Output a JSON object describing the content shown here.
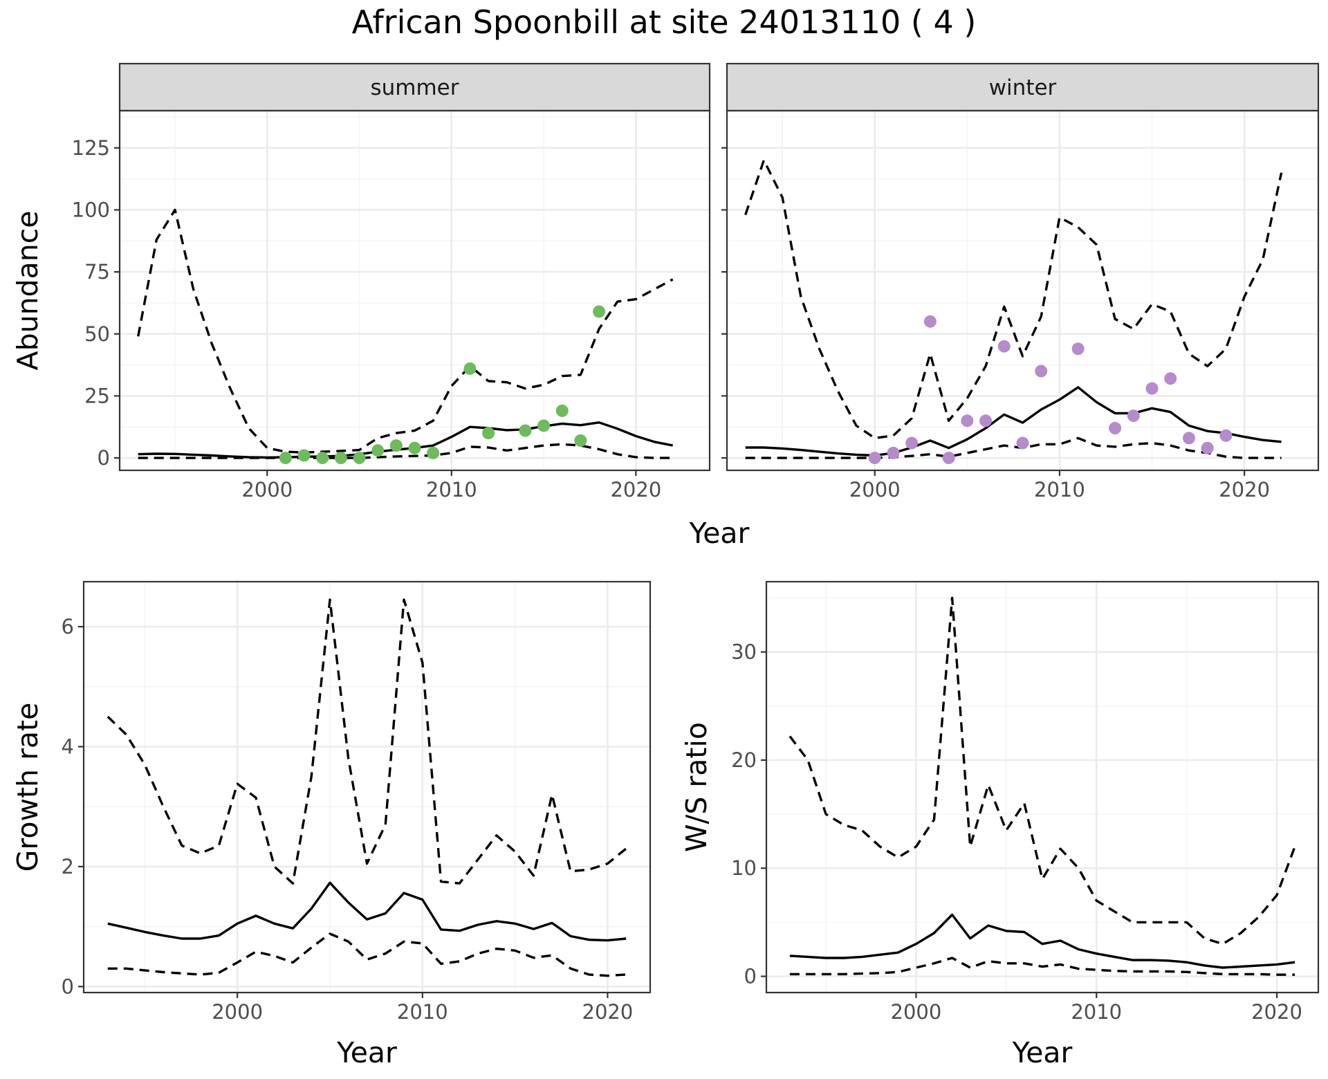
{
  "title": "African Spoonbill at site 24013110 ( 4 )",
  "colors": {
    "summer_points": "#6dbb5b",
    "winter_points": "#b58bcb",
    "lines": "#000000",
    "strip": "#d9d9d9"
  },
  "chart_data": [
    {
      "type": "line",
      "id": "summer",
      "facet_label": "summer",
      "xlabel": "Year",
      "ylabel": "Abundance",
      "xlim": [
        1992,
        2024
      ],
      "ylim": [
        -5,
        140
      ],
      "x_ticks": [
        2000,
        2010,
        2020
      ],
      "y_ticks": [
        0,
        25,
        50,
        75,
        100,
        125
      ],
      "grid": true,
      "series": [
        {
          "role": "estimate",
          "style": "solid",
          "x": [
            1993,
            1994,
            1995,
            1996,
            1997,
            1998,
            1999,
            2000,
            2001,
            2002,
            2003,
            2004,
            2005,
            2006,
            2007,
            2008,
            2009,
            2010,
            2011,
            2012,
            2013,
            2014,
            2015,
            2016,
            2017,
            2018,
            2019,
            2020,
            2021,
            2022
          ],
          "y": [
            1.5,
            1.7,
            1.6,
            1.3,
            1.0,
            0.6,
            0.3,
            0.2,
            0.3,
            0.5,
            0.6,
            0.8,
            1.5,
            2.5,
            3.3,
            4.0,
            5.0,
            8.5,
            12.5,
            12.0,
            11.2,
            11.5,
            12.8,
            13.8,
            13.2,
            14.3,
            11.8,
            8.8,
            6.5,
            5.0
          ]
        },
        {
          "role": "upper",
          "style": "dashed",
          "x": [
            1993,
            1994,
            1995,
            1996,
            1997,
            1998,
            1999,
            2000,
            2001,
            2002,
            2003,
            2004,
            2005,
            2006,
            2007,
            2008,
            2009,
            2010,
            2011,
            2012,
            2013,
            2014,
            2015,
            2016,
            2017,
            2018,
            2019,
            2020,
            2021,
            2022
          ],
          "y": [
            49,
            88,
            100,
            68,
            46,
            28,
            12,
            4,
            2.5,
            2.2,
            2.5,
            2.8,
            3.2,
            8,
            10,
            11,
            15,
            29,
            37,
            31,
            30.5,
            28,
            29.5,
            33,
            33.5,
            52,
            63,
            64,
            68,
            72
          ]
        },
        {
          "role": "lower",
          "style": "dashed",
          "x": [
            1993,
            1994,
            1995,
            1996,
            1997,
            1998,
            1999,
            2000,
            2001,
            2002,
            2003,
            2004,
            2005,
            2006,
            2007,
            2008,
            2009,
            2010,
            2011,
            2012,
            2013,
            2014,
            2015,
            2016,
            2017,
            2018,
            2019,
            2020,
            2021,
            2022
          ],
          "y": [
            0,
            0,
            0,
            0,
            0,
            0,
            0,
            0,
            0,
            0,
            0,
            0,
            0,
            0.3,
            0.6,
            0.8,
            1,
            2,
            4.5,
            4.2,
            3,
            4,
            5,
            5.5,
            5,
            3.5,
            1.5,
            0.3,
            0,
            0
          ]
        },
        {
          "role": "observed",
          "style": "points",
          "x": [
            2001,
            2002,
            2003,
            2004,
            2005,
            2006,
            2007,
            2008,
            2009,
            2011,
            2012,
            2014,
            2015,
            2016,
            2017,
            2018
          ],
          "y": [
            0,
            1,
            0,
            0,
            0,
            3,
            5,
            4,
            2,
            36,
            10,
            11,
            13,
            19,
            7,
            59
          ]
        }
      ]
    },
    {
      "type": "line",
      "id": "winter",
      "facet_label": "winter",
      "xlabel": "Year",
      "ylabel": "Abundance",
      "xlim": [
        1992,
        2024
      ],
      "ylim": [
        -5,
        140
      ],
      "x_ticks": [
        2000,
        2010,
        2020
      ],
      "y_ticks": [
        0,
        25,
        50,
        75,
        100,
        125
      ],
      "grid": true,
      "series": [
        {
          "role": "estimate",
          "style": "solid",
          "x": [
            1993,
            1994,
            1995,
            1996,
            1997,
            1998,
            1999,
            2000,
            2001,
            2002,
            2003,
            2004,
            2005,
            2006,
            2007,
            2008,
            2009,
            2010,
            2011,
            2012,
            2013,
            2014,
            2015,
            2016,
            2017,
            2018,
            2019,
            2020,
            2021,
            2022
          ],
          "y": [
            4.2,
            4.2,
            3.8,
            3.2,
            2.5,
            1.8,
            1.3,
            1.0,
            2.0,
            4.2,
            7.0,
            4.0,
            7.5,
            12,
            17.5,
            14.2,
            19.5,
            23.5,
            28.5,
            22.5,
            18,
            18,
            20,
            18.5,
            13,
            10.8,
            10,
            8.5,
            7.2,
            6.5
          ]
        },
        {
          "role": "upper",
          "style": "dashed",
          "x": [
            1993,
            1994,
            1995,
            1996,
            1997,
            1998,
            1999,
            2000,
            2001,
            2002,
            2003,
            2004,
            2005,
            2006,
            2007,
            2008,
            2009,
            2010,
            2011,
            2012,
            2013,
            2014,
            2015,
            2016,
            2017,
            2018,
            2019,
            2020,
            2021,
            2022
          ],
          "y": [
            98,
            120,
            105,
            65,
            44,
            27,
            13,
            8,
            9,
            16,
            42,
            15,
            24,
            37,
            61,
            41,
            57,
            97,
            93,
            86,
            56,
            52,
            62,
            59,
            42,
            37,
            44,
            65,
            80,
            115
          ]
        },
        {
          "role": "lower",
          "style": "dashed",
          "x": [
            1993,
            1994,
            1995,
            1996,
            1997,
            1998,
            1999,
            2000,
            2001,
            2002,
            2003,
            2004,
            2005,
            2006,
            2007,
            2008,
            2009,
            2010,
            2011,
            2012,
            2013,
            2014,
            2015,
            2016,
            2017,
            2018,
            2019,
            2020,
            2021,
            2022
          ],
          "y": [
            0,
            0,
            0,
            0,
            0,
            0,
            0,
            0,
            0.3,
            0.8,
            1.5,
            0.5,
            2,
            3.5,
            5,
            4,
            5.5,
            5.5,
            8,
            5,
            4.5,
            5.5,
            6,
            5,
            3,
            2,
            0.5,
            0,
            0,
            0
          ]
        },
        {
          "role": "observed",
          "style": "points",
          "x": [
            2000,
            2001,
            2002,
            2003,
            2004,
            2005,
            2006,
            2007,
            2008,
            2009,
            2011,
            2013,
            2014,
            2015,
            2016,
            2017,
            2018,
            2019
          ],
          "y": [
            0,
            2,
            6,
            55,
            0,
            15,
            15,
            45,
            6,
            35,
            44,
            12,
            17,
            28,
            32,
            8,
            4,
            9
          ]
        }
      ]
    },
    {
      "type": "line",
      "id": "growth",
      "xlabel": "Year",
      "ylabel": "Growth rate",
      "xlim": [
        1991.7,
        2022.3
      ],
      "ylim": [
        -0.1,
        6.75
      ],
      "x_ticks": [
        2000,
        2010,
        2020
      ],
      "y_ticks": [
        0,
        2,
        4,
        6
      ],
      "grid": true,
      "series": [
        {
          "role": "estimate",
          "style": "solid",
          "x": [
            1993,
            1994,
            1995,
            1996,
            1997,
            1998,
            1999,
            2000,
            2001,
            2002,
            2003,
            2004,
            2005,
            2006,
            2007,
            2008,
            2009,
            2010,
            2011,
            2012,
            2013,
            2014,
            2015,
            2016,
            2017,
            2018,
            2019,
            2020,
            2021
          ],
          "y": [
            1.05,
            0.98,
            0.91,
            0.85,
            0.8,
            0.8,
            0.85,
            1.05,
            1.18,
            1.05,
            0.97,
            1.3,
            1.73,
            1.4,
            1.12,
            1.22,
            1.56,
            1.45,
            0.95,
            0.93,
            1.03,
            1.09,
            1.05,
            0.96,
            1.06,
            0.84,
            0.78,
            0.77,
            0.8
          ]
        },
        {
          "role": "upper",
          "style": "dashed",
          "x": [
            1993,
            1994,
            1995,
            1996,
            1997,
            1998,
            1999,
            2000,
            2001,
            2002,
            2003,
            2004,
            2005,
            2006,
            2007,
            2008,
            2009,
            2010,
            2011,
            2012,
            2013,
            2014,
            2015,
            2016,
            2017,
            2018,
            2019,
            2020,
            2021
          ],
          "y": [
            4.5,
            4.2,
            3.7,
            3.0,
            2.35,
            2.22,
            2.35,
            3.38,
            3.15,
            2.0,
            1.72,
            3.5,
            6.45,
            3.8,
            2.05,
            2.7,
            6.45,
            5.4,
            1.75,
            1.72,
            2.12,
            2.52,
            2.25,
            1.85,
            3.2,
            1.92,
            1.95,
            2.05,
            2.3
          ]
        },
        {
          "role": "lower",
          "style": "dashed",
          "x": [
            1993,
            1994,
            1995,
            1996,
            1997,
            1998,
            1999,
            2000,
            2001,
            2002,
            2003,
            2004,
            2005,
            2006,
            2007,
            2008,
            2009,
            2010,
            2011,
            2012,
            2013,
            2014,
            2015,
            2016,
            2017,
            2018,
            2019,
            2020,
            2021
          ],
          "y": [
            0.3,
            0.3,
            0.27,
            0.24,
            0.22,
            0.2,
            0.23,
            0.4,
            0.58,
            0.51,
            0.4,
            0.65,
            0.88,
            0.75,
            0.45,
            0.55,
            0.75,
            0.72,
            0.38,
            0.42,
            0.55,
            0.63,
            0.6,
            0.48,
            0.52,
            0.3,
            0.2,
            0.18,
            0.2
          ]
        }
      ]
    },
    {
      "type": "line",
      "id": "ratio",
      "xlabel": "Year",
      "ylabel": "W/S ratio",
      "xlim": [
        1991.7,
        2022.3
      ],
      "ylim": [
        -1.5,
        36.5
      ],
      "x_ticks": [
        2000,
        2010,
        2020
      ],
      "y_ticks": [
        0,
        10,
        20,
        30
      ],
      "grid": true,
      "series": [
        {
          "role": "estimate",
          "style": "solid",
          "x": [
            1993,
            1994,
            1995,
            1996,
            1997,
            1998,
            1999,
            2000,
            2001,
            2002,
            2003,
            2004,
            2005,
            2006,
            2007,
            2008,
            2009,
            2010,
            2011,
            2012,
            2013,
            2014,
            2015,
            2016,
            2017,
            2018,
            2019,
            2020,
            2021
          ],
          "y": [
            1.9,
            1.8,
            1.7,
            1.7,
            1.8,
            2.0,
            2.2,
            3.0,
            4.0,
            5.7,
            3.5,
            4.7,
            4.2,
            4.1,
            3.0,
            3.3,
            2.5,
            2.1,
            1.8,
            1.5,
            1.5,
            1.45,
            1.3,
            1.0,
            0.8,
            0.9,
            1.0,
            1.1,
            1.3
          ]
        },
        {
          "role": "upper",
          "style": "dashed",
          "x": [
            1993,
            1994,
            1995,
            1996,
            1997,
            1998,
            1999,
            2000,
            2001,
            2002,
            2003,
            2004,
            2005,
            2006,
            2007,
            2008,
            2009,
            2010,
            2011,
            2012,
            2013,
            2014,
            2015,
            2016,
            2017,
            2018,
            2019,
            2020,
            2021
          ],
          "y": [
            22.2,
            20,
            15,
            14,
            13.5,
            12,
            11,
            12,
            14.5,
            35,
            12,
            17.7,
            13.5,
            16,
            9,
            11.8,
            10,
            7,
            6,
            5,
            5,
            5,
            5,
            3.5,
            3,
            4,
            5.5,
            7.5,
            12
          ]
        },
        {
          "role": "lower",
          "style": "dashed",
          "x": [
            1993,
            1994,
            1995,
            1996,
            1997,
            1998,
            1999,
            2000,
            2001,
            2002,
            2003,
            2004,
            2005,
            2006,
            2007,
            2008,
            2009,
            2010,
            2011,
            2012,
            2013,
            2014,
            2015,
            2016,
            2017,
            2018,
            2019,
            2020,
            2021
          ],
          "y": [
            0.2,
            0.2,
            0.2,
            0.2,
            0.25,
            0.3,
            0.4,
            0.8,
            1.2,
            1.7,
            0.8,
            1.4,
            1.2,
            1.2,
            0.9,
            1.1,
            0.7,
            0.6,
            0.5,
            0.45,
            0.45,
            0.45,
            0.4,
            0.3,
            0.2,
            0.2,
            0.2,
            0.15,
            0.15
          ]
        }
      ]
    }
  ]
}
